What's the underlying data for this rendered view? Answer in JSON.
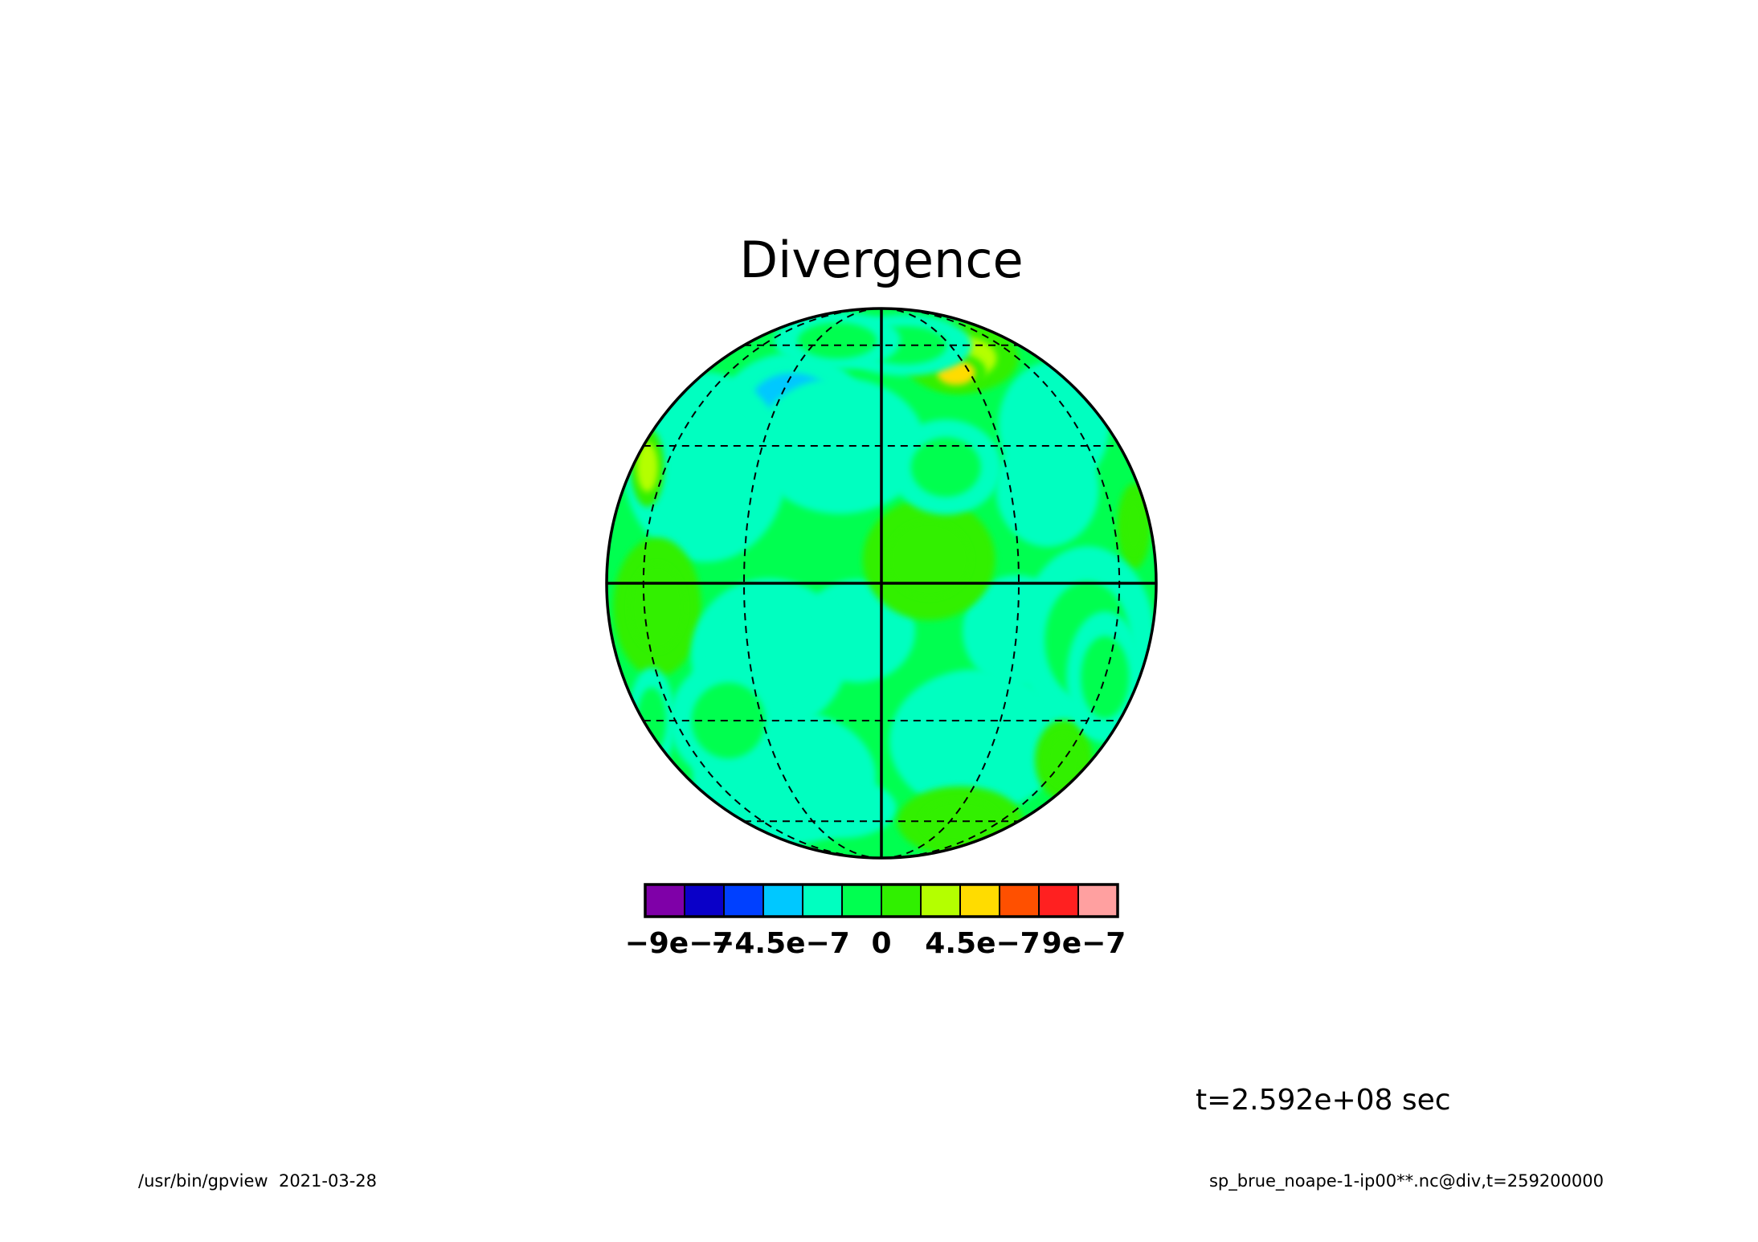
{
  "chart_data": {
    "type": "heatmap",
    "projection": "orthographic",
    "title": "Divergence",
    "colorbar": {
      "colors": [
        "#7f00a8",
        "#0a00c8",
        "#0040ff",
        "#00c8ff",
        "#00ffc0",
        "#00ff50",
        "#30f000",
        "#b4ff00",
        "#ffdc00",
        "#ff5000",
        "#ff2020",
        "#ffa0a0"
      ],
      "ticks": [
        {
          "value": -9e-07,
          "label": "−9e−7"
        },
        {
          "value": -4.5e-07,
          "label": "−4.5e−7"
        },
        {
          "value": 0,
          "label": "0"
        },
        {
          "value": 4.5e-07,
          "label": "4.5e−7"
        },
        {
          "value": 9e-07,
          "label": "9e−7"
        }
      ],
      "range": [
        -1.05e-06,
        1.05e-06
      ],
      "orientation": "horizontal",
      "placement": "below"
    },
    "background_color": "#00ff50",
    "regions": [
      {
        "lon": -35,
        "lat": 40,
        "value": -5e-07,
        "size": 1.0
      },
      {
        "lon": -25,
        "lat": 40,
        "value": -4e-07,
        "size": 1.6
      },
      {
        "lon": -15,
        "lat": 28,
        "value": -6e-07,
        "size": 0.8
      },
      {
        "lon": -10,
        "lat": 30,
        "value": -3e-07,
        "size": 1.8
      },
      {
        "lon": -45,
        "lat": 25,
        "value": -2e-07,
        "size": 2.4
      },
      {
        "lon": 40,
        "lat": 20,
        "value": -3e-07,
        "size": 1.4
      },
      {
        "lon": 50,
        "lat": 35,
        "value": -2e-07,
        "size": 1.8
      },
      {
        "lon": 30,
        "lat": 55,
        "value": 2.5e-07,
        "size": 1.4
      },
      {
        "lon": 25,
        "lat": 50,
        "value": 4e-07,
        "size": 0.7
      },
      {
        "lon": 70,
        "lat": 12,
        "value": 1.5e-07,
        "size": 1.0
      },
      {
        "lon": -70,
        "lat": 25,
        "value": 2e-07,
        "size": 1.0
      },
      {
        "lon": -60,
        "lat": -8,
        "value": 4e-07,
        "size": 0.8
      },
      {
        "lon": -55,
        "lat": -5,
        "value": 1.5e-07,
        "size": 1.6
      },
      {
        "lon": -5,
        "lat": -10,
        "value": -3e-07,
        "size": 1.2
      },
      {
        "lon": -25,
        "lat": -15,
        "value": -2e-07,
        "size": 1.8
      },
      {
        "lon": 30,
        "lat": -10,
        "value": -3e-07,
        "size": 1.3
      },
      {
        "lon": 50,
        "lat": -12,
        "value": -1.5e-07,
        "size": 2.2
      },
      {
        "lon": 25,
        "lat": -35,
        "value": -2e-07,
        "size": 2.0
      },
      {
        "lon": -30,
        "lat": -45,
        "value": -2e-07,
        "size": 2.2
      },
      {
        "lon": -15,
        "lat": -55,
        "value": -3e-07,
        "size": 1.2
      },
      {
        "lon": 35,
        "lat": -60,
        "value": 1.5e-07,
        "size": 1.6
      },
      {
        "lon": 60,
        "lat": -40,
        "value": 1.2e-07,
        "size": 1.2
      },
      {
        "lon": 10,
        "lat": 5,
        "value": 1e-07,
        "size": 1.4
      },
      {
        "lon": -40,
        "lat": -30,
        "value": -1.5e-07,
        "size": 1.6
      },
      {
        "lon": 60,
        "lat": -20,
        "value": -1.5e-07,
        "size": 1.6
      },
      {
        "lon": 75,
        "lat": 45,
        "value": -2e-07,
        "size": 0.8
      },
      {
        "lon": -75,
        "lat": -30,
        "value": -1.5e-07,
        "size": 1.4
      },
      {
        "lon": 10,
        "lat": 60,
        "value": -1.5e-07,
        "size": 1.4
      },
      {
        "lon": -20,
        "lat": 62,
        "value": -1.5e-07,
        "size": 1.4
      },
      {
        "lon": 15,
        "lat": 25,
        "value": -1.5e-07,
        "size": 1.2
      }
    ],
    "graticule": {
      "solid_meridians": [
        0
      ],
      "solid_parallels": [
        0
      ],
      "dashed_meridians": [
        -90,
        -60,
        -30,
        30,
        60,
        90
      ],
      "dashed_parallels": [
        -60,
        -30,
        30,
        60
      ]
    }
  },
  "footer": {
    "time_label": "t=2.592e+08 sec",
    "left": "/usr/bin/gpview  2021-03-28",
    "right": "sp_brue_noape-1-ip00**.nc@div,t=259200000"
  }
}
